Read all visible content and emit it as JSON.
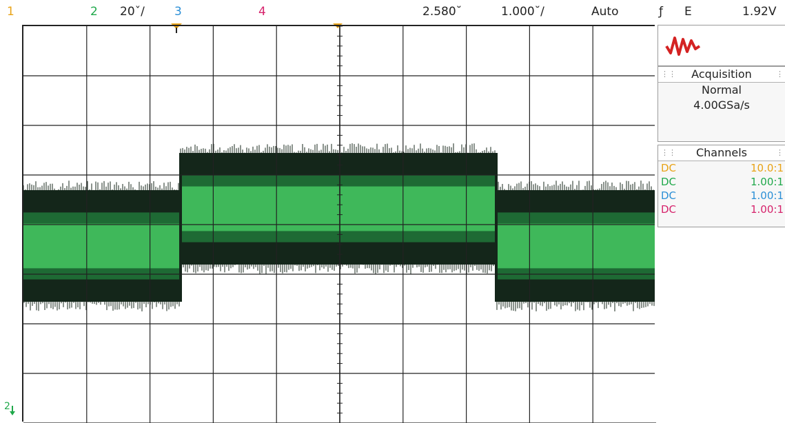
{
  "topbar": {
    "ch1": "1",
    "ch2": "2",
    "ch2_scale": "20ˇ/",
    "ch3": "3",
    "ch4": "4",
    "time_pos": "2.580˘",
    "time_div": "1.000˘/",
    "trigger_mode": "Auto",
    "trigger_slope_symbol": "ƒ",
    "trigger_source": "E",
    "trigger_level": "1.92V"
  },
  "colors": {
    "ch1": "#e8a317",
    "ch2": "#1fa84a",
    "ch3": "#2b8fd6",
    "ch4": "#d6226b",
    "logo": "#d42222",
    "trace_bright": "#3fb85a",
    "trace_dark": "#14261a"
  },
  "graticule": {
    "ground_marker": "2"
  },
  "panel": {
    "logo_icon": "keysight-wave-icon",
    "acquisition": {
      "title": "Acquisition",
      "mode": "Normal",
      "rate": "4.00GSa/s"
    },
    "channels": {
      "title": "Channels",
      "rows": [
        {
          "coupling": "DC",
          "scale": "10.0:1"
        },
        {
          "coupling": "DC",
          "scale": "1.00:1"
        },
        {
          "coupling": "DC",
          "scale": "1.00:1"
        },
        {
          "coupling": "DC",
          "scale": "1.00:1"
        }
      ]
    }
  }
}
